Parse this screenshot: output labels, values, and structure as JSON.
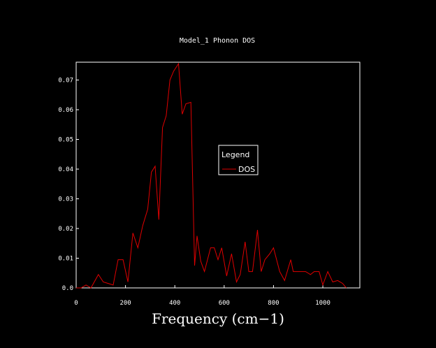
{
  "chart_data": {
    "type": "line",
    "title": "Model_1 Phonon DOS",
    "xlabel": "Frequency (cm−1)",
    "ylabel": "",
    "xlim": [
      0,
      1150
    ],
    "ylim": [
      0,
      0.076
    ],
    "xticks": [
      0,
      200,
      400,
      600,
      800,
      1000
    ],
    "yticks": [
      0.0,
      0.01,
      0.02,
      0.03,
      0.04,
      0.05,
      0.06,
      0.07
    ],
    "ytick_labels": [
      "0.0",
      "0.01",
      "0.02",
      "0.03",
      "0.04",
      "0.05",
      "0.06",
      "0.07"
    ],
    "grid": false,
    "legend": {
      "title": "Legend",
      "placement": "center-right"
    },
    "series": [
      {
        "name": "DOS",
        "color": "#e00000",
        "x": [
          0,
          20,
          40,
          60,
          90,
          110,
          130,
          150,
          170,
          190,
          210,
          230,
          250,
          270,
          290,
          305,
          320,
          335,
          350,
          365,
          380,
          395,
          415,
          430,
          445,
          465,
          480,
          490,
          505,
          520,
          545,
          560,
          575,
          590,
          610,
          630,
          650,
          665,
          685,
          700,
          715,
          735,
          750,
          765,
          785,
          800,
          825,
          845,
          870,
          880,
          900,
          930,
          950,
          965,
          985,
          1000,
          1020,
          1040,
          1060,
          1080,
          1095
        ],
        "y": [
          0.0,
          0.0,
          0.001,
          0.0,
          0.0045,
          0.002,
          0.0015,
          0.001,
          0.0095,
          0.0095,
          0.002,
          0.0185,
          0.0135,
          0.021,
          0.0265,
          0.039,
          0.041,
          0.023,
          0.054,
          0.058,
          0.07,
          0.073,
          0.0755,
          0.0585,
          0.062,
          0.0625,
          0.0075,
          0.0175,
          0.009,
          0.0055,
          0.0135,
          0.0135,
          0.0095,
          0.0135,
          0.004,
          0.0115,
          0.002,
          0.0045,
          0.0155,
          0.0055,
          0.0055,
          0.0195,
          0.0055,
          0.0095,
          0.0115,
          0.0135,
          0.0055,
          0.0025,
          0.0095,
          0.0055,
          0.0055,
          0.0055,
          0.0045,
          0.0055,
          0.0055,
          0.001,
          0.0055,
          0.002,
          0.0025,
          0.0015,
          0.0
        ]
      }
    ]
  }
}
